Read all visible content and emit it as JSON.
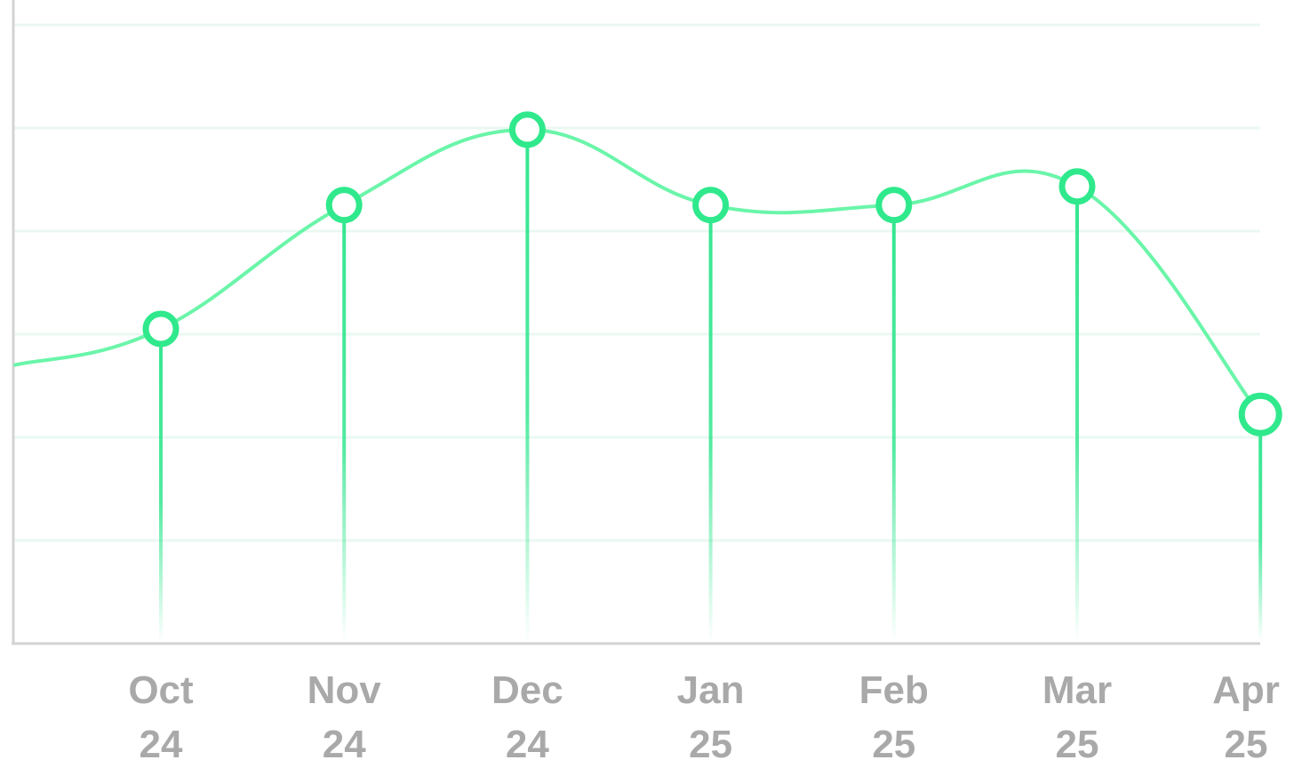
{
  "chart_data": {
    "type": "line",
    "title": "",
    "xlabel": "",
    "ylabel": "",
    "categories": [
      {
        "month": "Oct",
        "year": "24"
      },
      {
        "month": "Nov",
        "year": "24"
      },
      {
        "month": "Dec",
        "year": "24"
      },
      {
        "month": "Jan",
        "year": "25"
      },
      {
        "month": "Feb",
        "year": "25"
      },
      {
        "month": "Mar",
        "year": "25"
      },
      {
        "month": "Apr",
        "year": "25"
      }
    ],
    "series": [
      {
        "values": [
          3.05,
          4.25,
          4.98,
          4.25,
          4.25,
          4.43,
          2.22
        ],
        "line_start_value": 2.7
      }
    ],
    "ylim": [
      0,
      6
    ],
    "grid": true,
    "colors": {
      "line": "#6af5a9",
      "marker": "#2fe98c",
      "drop_line": "#34e690",
      "grid": "#eaf8f1",
      "axis": "#d3d3d3",
      "tick_text": "#a9a9a9"
    }
  }
}
